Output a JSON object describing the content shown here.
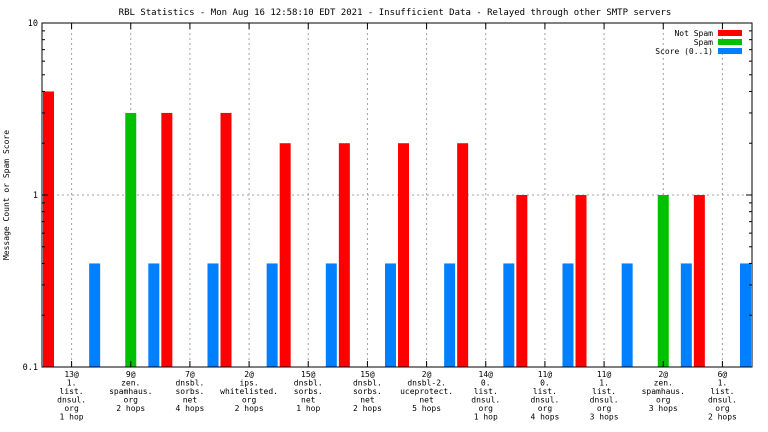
{
  "chart_data": {
    "type": "bar",
    "title": "RBL Statistics - Mon Aug 16 12:58:10 EDT 2021 - Insufficient Data - Relayed through other SMTP servers",
    "ylabel": "Message Count or Spam Score",
    "xlabel": "",
    "yscale": "log",
    "ylim": [
      0.1,
      10
    ],
    "yticks": [
      "0.1",
      "1",
      "10"
    ],
    "grid": true,
    "legend_position": "top-right",
    "categories": [
      [
        "13@",
        "1.",
        "list.",
        "dnsul.",
        "org",
        "1 hop"
      ],
      [
        "9@",
        "zen.",
        "spamhaus.",
        "org",
        "2 hops"
      ],
      [
        "7@",
        "dnsbl.",
        "sorbs.",
        "net",
        "4 hops"
      ],
      [
        "2@",
        "ips.",
        "whitelisted.",
        "org",
        "2 hops"
      ],
      [
        "15@",
        "dnsbl.",
        "sorbs.",
        "net",
        "1 hop"
      ],
      [
        "15@",
        "dnsbl.",
        "sorbs.",
        "net",
        "2 hops"
      ],
      [
        "2@",
        "dnsbl-2.",
        "uceprotect.",
        "net",
        "5 hops"
      ],
      [
        "14@",
        "0.",
        "list.",
        "dnsul.",
        "org",
        "1 hop"
      ],
      [
        "11@",
        "0.",
        "list.",
        "dnsul.",
        "org",
        "4 hops"
      ],
      [
        "11@",
        "1.",
        "list.",
        "dnsul.",
        "org",
        "3 hops"
      ],
      [
        "2@",
        "zen.",
        "spamhaus.",
        "org",
        "3 hops"
      ],
      [
        "6@",
        "1.",
        "list.",
        "dnsul.",
        "org",
        "2 hops"
      ]
    ],
    "series": [
      {
        "name": "Not Spam",
        "color": "#ff0000",
        "values": [
          4,
          0,
          3,
          3,
          2,
          2,
          2,
          2,
          1,
          1,
          0,
          1
        ]
      },
      {
        "name": "Spam",
        "color": "#00c000",
        "values": [
          0,
          3,
          0,
          0,
          0,
          0,
          0,
          0,
          0,
          0,
          1,
          0
        ]
      },
      {
        "name": "Score (0..1)",
        "color": "#0080ff",
        "values": [
          0.4,
          0.4,
          0.4,
          0.4,
          0.4,
          0.4,
          0.4,
          0.4,
          0.4,
          0.4,
          0.4,
          0.4
        ]
      }
    ]
  }
}
